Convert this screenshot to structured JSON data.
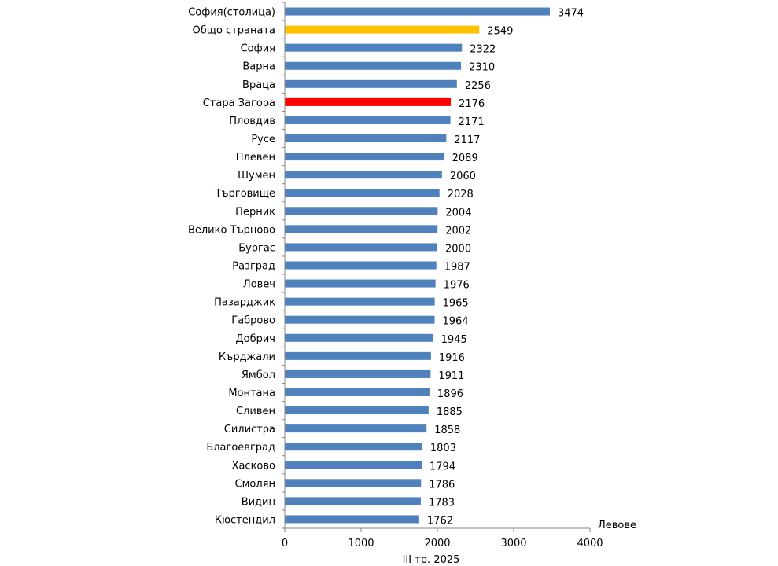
{
  "chart_data": {
    "type": "bar",
    "orientation": "horizontal",
    "title": "",
    "xlabel": "III  тр. 2025",
    "unit_label": "Левове",
    "ylabel": "",
    "xlim": [
      0,
      4000
    ],
    "xticks": [
      0,
      1000,
      2000,
      3000,
      4000
    ],
    "grid": false,
    "categories": [
      "София(столица)",
      "Общо страната",
      "София",
      "Варна",
      "Враца",
      "Стара Загора",
      "Пловдив",
      "Русе",
      "Плевен",
      "Шумен",
      "Търговище",
      "Перник",
      "Велико Търново",
      "Бургас",
      "Разград",
      "Ловеч",
      "Пазарджик",
      "Габрово",
      "Добрич",
      "Кърджали",
      "Ямбол",
      "Монтана",
      "Сливен",
      "Силистра",
      "Благоевград",
      "Хасково",
      "Смолян",
      "Видин",
      "Кюстендил"
    ],
    "values": [
      3474,
      2549,
      2322,
      2310,
      2256,
      2176,
      2171,
      2117,
      2089,
      2060,
      2028,
      2004,
      2002,
      2000,
      1987,
      1976,
      1965,
      1964,
      1945,
      1916,
      1911,
      1896,
      1885,
      1858,
      1803,
      1794,
      1786,
      1783,
      1762
    ],
    "colors": {
      "default": "#4f81bd",
      "Общо страната": "#ffc000",
      "Стара Загора": "#ff0000"
    }
  }
}
